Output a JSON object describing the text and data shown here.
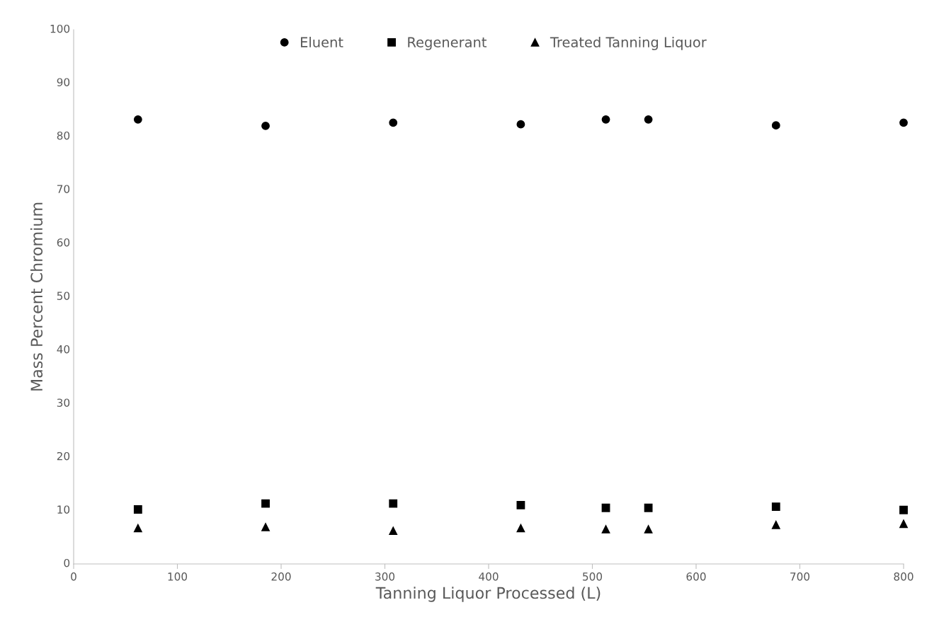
{
  "chart_data": {
    "type": "scatter",
    "xlabel": "Tanning Liquor Processed (L)",
    "ylabel": "Mass Percent Chromium",
    "x": [
      62,
      185,
      308,
      431,
      513,
      554,
      677,
      800
    ],
    "series": [
      {
        "name": "Eluent",
        "color": "#000000",
        "marker": "circle",
        "values": [
          83.2,
          82.0,
          82.6,
          82.3,
          83.2,
          83.2,
          82.1,
          82.6
        ]
      },
      {
        "name": "Regenerant",
        "color": "#000000",
        "marker": "square",
        "values": [
          10.2,
          11.3,
          11.3,
          11.0,
          10.5,
          10.5,
          10.7,
          10.1
        ]
      },
      {
        "name": "Treated Tanning Liquor",
        "color": "#000000",
        "marker": "triangle",
        "values": [
          6.7,
          6.9,
          6.2,
          6.7,
          6.5,
          6.5,
          7.3,
          7.5
        ]
      }
    ],
    "xlim": [
      0,
      800
    ],
    "xticks": [
      0,
      100,
      200,
      300,
      400,
      500,
      600,
      700,
      800
    ],
    "ylim": [
      0,
      100
    ],
    "yticks": [
      0,
      10,
      20,
      30,
      40,
      50,
      60,
      70,
      80,
      90,
      100
    ],
    "grid": false,
    "legend": "top"
  }
}
